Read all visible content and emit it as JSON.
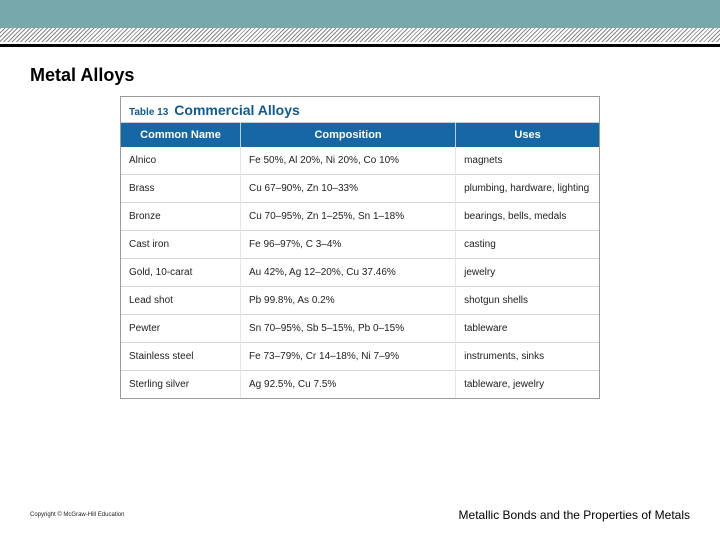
{
  "band_color": "#77a9aa",
  "page_title": "Metal Alloys",
  "table": {
    "label": "Table 13",
    "title": "Commercial Alloys",
    "header_bg": "#1567a6",
    "header_fg": "#ffffff",
    "columns": [
      "Common Name",
      "Composition",
      "Uses"
    ],
    "rows": [
      [
        "Alnico",
        "Fe 50%, Al 20%, Ni 20%, Co 10%",
        "magnets"
      ],
      [
        "Brass",
        "Cu 67–90%, Zn 10–33%",
        "plumbing, hardware, lighting"
      ],
      [
        "Bronze",
        "Cu 70–95%, Zn 1–25%, Sn 1–18%",
        "bearings, bells, medals"
      ],
      [
        "Cast iron",
        "Fe 96–97%, C 3–4%",
        "casting"
      ],
      [
        "Gold, 10-carat",
        "Au 42%, Ag 12–20%, Cu 37.46%",
        "jewelry"
      ],
      [
        "Lead shot",
        "Pb 99.8%, As 0.2%",
        "shotgun shells"
      ],
      [
        "Pewter",
        "Sn 70–95%, Sb 5–15%, Pb 0–15%",
        "tableware"
      ],
      [
        "Stainless steel",
        "Fe 73–79%, Cr 14–18%, Ni 7–9%",
        "instruments, sinks"
      ],
      [
        "Sterling silver",
        "Ag 92.5%, Cu 7.5%",
        "tableware, jewelry"
      ]
    ]
  },
  "footer": {
    "copyright": "Copyright © McGraw-Hill Education",
    "chapter": "Metallic Bonds and the Properties of Metals"
  }
}
